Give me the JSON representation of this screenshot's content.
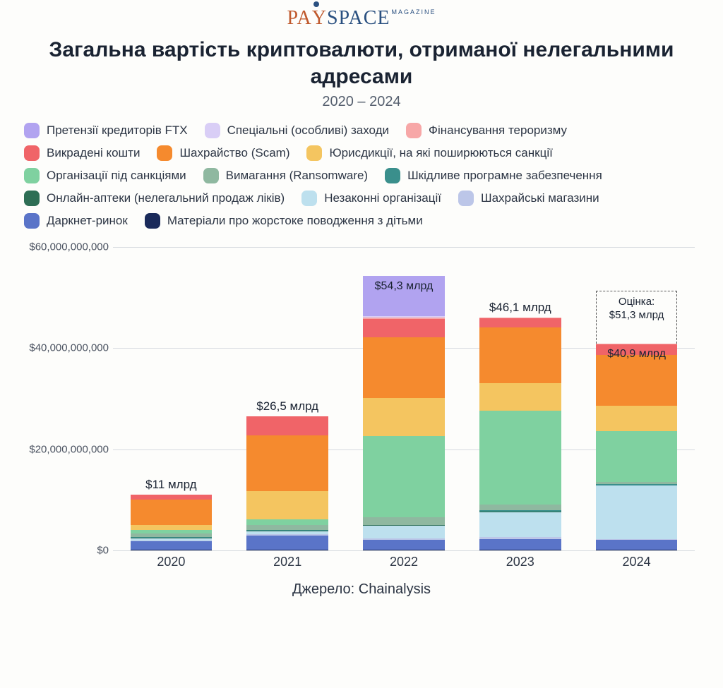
{
  "logo": {
    "text_left": "PA",
    "text_y": "Y",
    "text_right": "SPACE",
    "tag": "MAGAZINE"
  },
  "title": "Загальна вартість криптовалюти, отриманої нелегальними адресами",
  "subtitle": "2020 – 2024",
  "source_label": "Джерело: Chainalysis",
  "colors": {
    "ftx": "#b1a3f0",
    "special": "#d9cef6",
    "terror": "#f7a7a7",
    "stolen": "#f06468",
    "scam": "#f58a2e",
    "sanctions_jur": "#f4c560",
    "sanctions_org": "#7fd1a0",
    "ransomware": "#8fb8a0",
    "malware": "#3a8f8c",
    "pharmacy": "#2e6e55",
    "illegal_org": "#bde0ee",
    "fraud_shops": "#bcc6e8",
    "darknet": "#5a74c8",
    "csam": "#1a2a5a",
    "grid": "#d6dadf",
    "bg": "#fdfdfb",
    "text": "#1a2332"
  },
  "legend": [
    {
      "key": "ftx",
      "label": "Претензії кредиторів FTX"
    },
    {
      "key": "special",
      "label": "Спеціальні (особливі) заходи"
    },
    {
      "key": "terror",
      "label": "Фінансування тероризму"
    },
    {
      "key": "stolen",
      "label": "Викрадені кошти"
    },
    {
      "key": "scam",
      "label": "Шахрайство (Scam)"
    },
    {
      "key": "sanctions_jur",
      "label": "Юрисдикції, на які поширюються санкції"
    },
    {
      "key": "sanctions_org",
      "label": "Організації під санкціями"
    },
    {
      "key": "ransomware",
      "label": "Вимагання (Ransomware)"
    },
    {
      "key": "malware",
      "label": "Шкідливе програмне забезпечення"
    },
    {
      "key": "pharmacy",
      "label": "Онлайн-аптеки (нелегальний продаж ліків)"
    },
    {
      "key": "illegal_org",
      "label": "Незаконні організації"
    },
    {
      "key": "fraud_shops",
      "label": "Шахрайські магазини"
    },
    {
      "key": "darknet",
      "label": "Даркнет-ринок"
    },
    {
      "key": "csam",
      "label": "Матеріали про жорстоке поводження з дітьми"
    }
  ],
  "chart": {
    "type": "stacked-bar",
    "y_max": 60,
    "y_ticks": [
      {
        "v": 0,
        "label": "$0"
      },
      {
        "v": 20,
        "label": "$20,000,000,000"
      },
      {
        "v": 40,
        "label": "$40,000,000,000"
      },
      {
        "v": 60,
        "label": "$60,000,000,000"
      }
    ],
    "categories": [
      "2020",
      "2021",
      "2022",
      "2023",
      "2024"
    ],
    "bars": [
      {
        "year": "2020",
        "total_label": "$11 млрд",
        "segments": [
          {
            "key": "csam",
            "v": 0.1
          },
          {
            "key": "darknet",
            "v": 1.7
          },
          {
            "key": "fraud_shops",
            "v": 0.2
          },
          {
            "key": "illegal_org",
            "v": 0.4
          },
          {
            "key": "pharmacy",
            "v": 0.1
          },
          {
            "key": "malware",
            "v": 0.1
          },
          {
            "key": "ransomware",
            "v": 0.7
          },
          {
            "key": "sanctions_org",
            "v": 0.7
          },
          {
            "key": "sanctions_jur",
            "v": 1.0
          },
          {
            "key": "scam",
            "v": 5.1
          },
          {
            "key": "stolen",
            "v": 0.9
          }
        ]
      },
      {
        "year": "2021",
        "total_label": "$26,5 млрд",
        "segments": [
          {
            "key": "csam",
            "v": 0.1
          },
          {
            "key": "darknet",
            "v": 2.8
          },
          {
            "key": "fraud_shops",
            "v": 0.3
          },
          {
            "key": "illegal_org",
            "v": 0.6
          },
          {
            "key": "pharmacy",
            "v": 0.1
          },
          {
            "key": "malware",
            "v": 0.1
          },
          {
            "key": "ransomware",
            "v": 1.0
          },
          {
            "key": "sanctions_org",
            "v": 1.2
          },
          {
            "key": "sanctions_jur",
            "v": 5.5
          },
          {
            "key": "scam",
            "v": 11.0
          },
          {
            "key": "stolen",
            "v": 3.8
          }
        ]
      },
      {
        "year": "2022",
        "total_label": "$54,3 млрд",
        "top_seg_label": "$54,3 млрд",
        "segments": [
          {
            "key": "csam",
            "v": 0.1
          },
          {
            "key": "darknet",
            "v": 2.0
          },
          {
            "key": "fraud_shops",
            "v": 0.3
          },
          {
            "key": "illegal_org",
            "v": 2.5
          },
          {
            "key": "pharmacy",
            "v": 0.1
          },
          {
            "key": "malware",
            "v": 0.1
          },
          {
            "key": "ransomware",
            "v": 1.5
          },
          {
            "key": "sanctions_org",
            "v": 16.0
          },
          {
            "key": "sanctions_jur",
            "v": 7.5
          },
          {
            "key": "scam",
            "v": 12.0
          },
          {
            "key": "stolen",
            "v": 3.7
          },
          {
            "key": "terror",
            "v": 0.2
          },
          {
            "key": "special",
            "v": 0.3
          },
          {
            "key": "ftx",
            "v": 8.0
          }
        ]
      },
      {
        "year": "2023",
        "total_label": "$46,1 млрд",
        "segments": [
          {
            "key": "csam",
            "v": 0.1
          },
          {
            "key": "darknet",
            "v": 2.2
          },
          {
            "key": "fraud_shops",
            "v": 0.3
          },
          {
            "key": "illegal_org",
            "v": 5.0
          },
          {
            "key": "pharmacy",
            "v": 0.1
          },
          {
            "key": "malware",
            "v": 0.2
          },
          {
            "key": "ransomware",
            "v": 1.2
          },
          {
            "key": "sanctions_org",
            "v": 18.5
          },
          {
            "key": "sanctions_jur",
            "v": 5.5
          },
          {
            "key": "scam",
            "v": 11.0
          },
          {
            "key": "stolen",
            "v": 1.8
          },
          {
            "key": "terror",
            "v": 0.2
          }
        ]
      },
      {
        "year": "2024",
        "total_label": "$40,9 млрд",
        "label_inside": true,
        "estimate": {
          "v": 51.3,
          "label_line1": "Оцінка:",
          "label_line2": "$51,3 млрд"
        },
        "segments": [
          {
            "key": "csam",
            "v": 0.1
          },
          {
            "key": "darknet",
            "v": 2.0
          },
          {
            "key": "fraud_shops",
            "v": 0.2
          },
          {
            "key": "illegal_org",
            "v": 10.5
          },
          {
            "key": "pharmacy",
            "v": 0.1
          },
          {
            "key": "malware",
            "v": 0.2
          },
          {
            "key": "ransomware",
            "v": 0.5
          },
          {
            "key": "sanctions_org",
            "v": 10.0
          },
          {
            "key": "sanctions_jur",
            "v": 5.0
          },
          {
            "key": "scam",
            "v": 10.0
          },
          {
            "key": "stolen",
            "v": 2.1
          },
          {
            "key": "terror",
            "v": 0.2
          }
        ]
      }
    ]
  }
}
